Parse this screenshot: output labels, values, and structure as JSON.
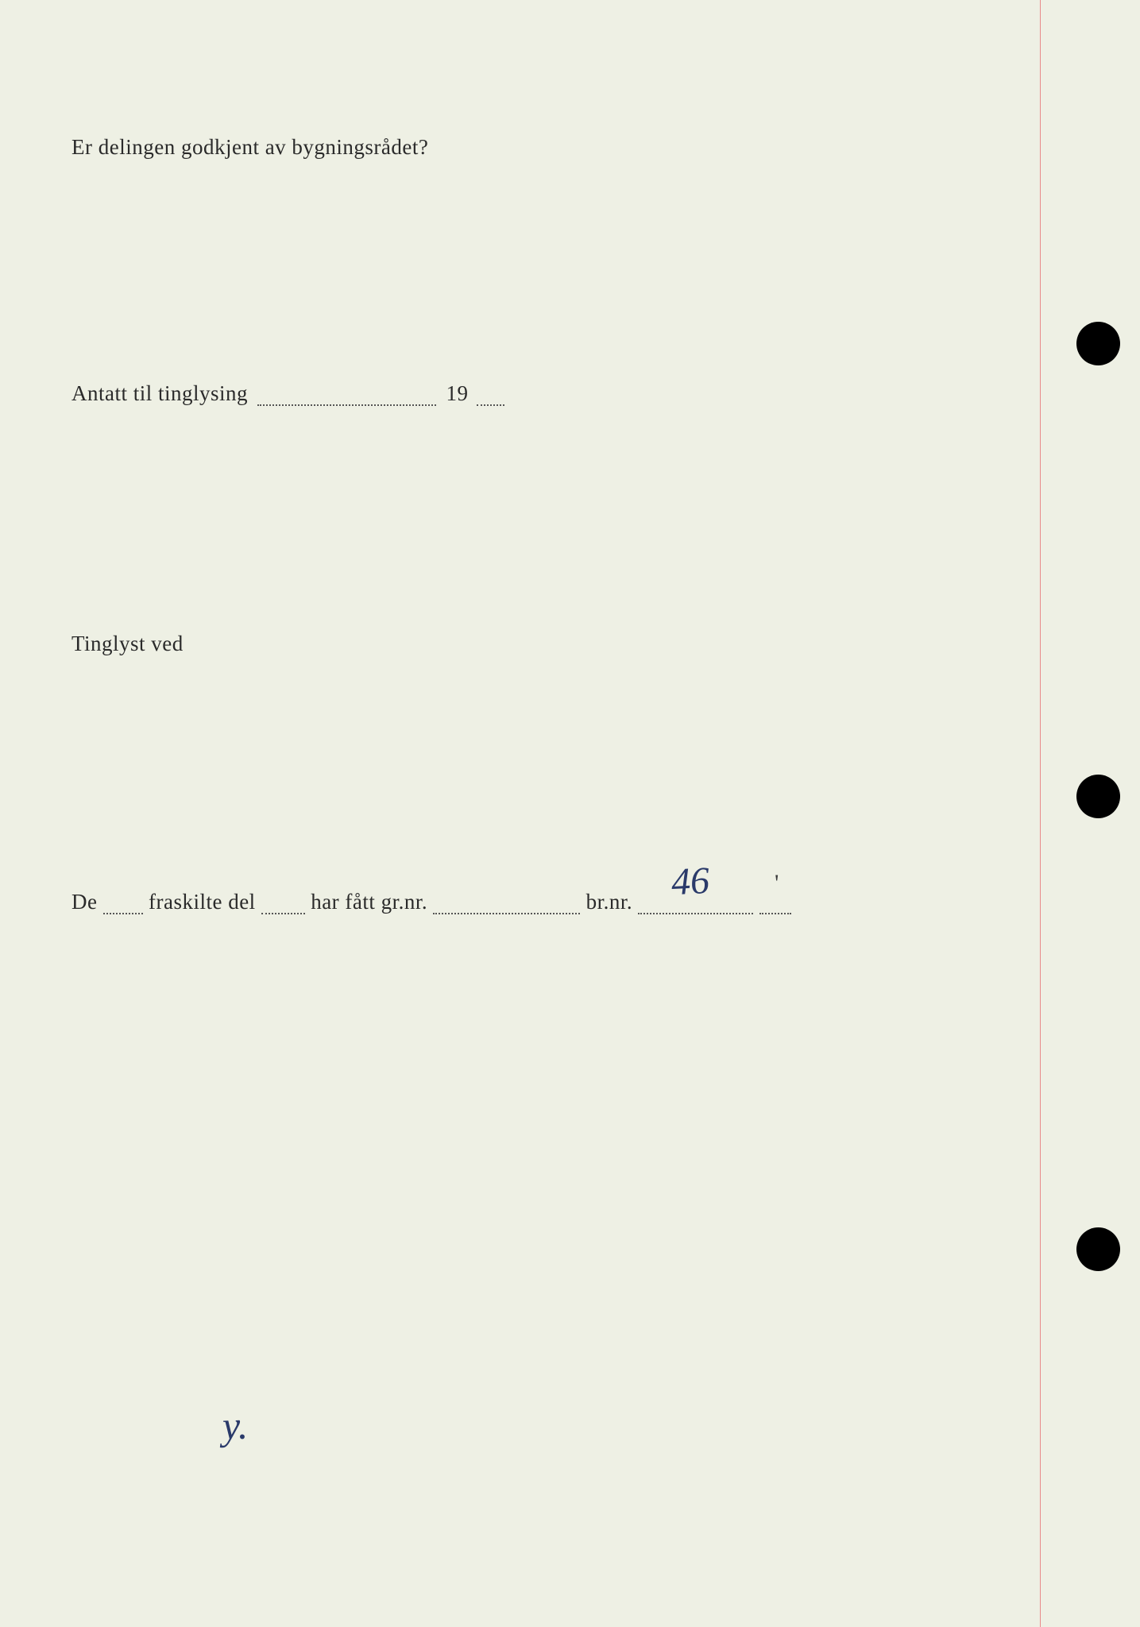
{
  "document": {
    "background_color": "#eef0e4",
    "margin_line_color": "#e88a8a",
    "hole_color": "#000000",
    "text_color": "#2a2a2a",
    "handwriting_color": "#2a3a6a",
    "font_size_body": 27,
    "font_size_handwritten": 48
  },
  "fields": {
    "question": "Er delingen godkjent av bygningsrådet?",
    "tinglysing_label": "Antatt til tinglysing",
    "year_prefix": "19",
    "tinglyst_label": "Tinglyst ved",
    "parcel_prefix": "De",
    "parcel_mid1": "fraskilte del",
    "parcel_mid2": "har fått gr.nr.",
    "parcel_brnr_label": "br.nr.",
    "handwritten_brnr": "46",
    "handwritten_signature": "y.",
    "apostrophe_mark": "'"
  }
}
